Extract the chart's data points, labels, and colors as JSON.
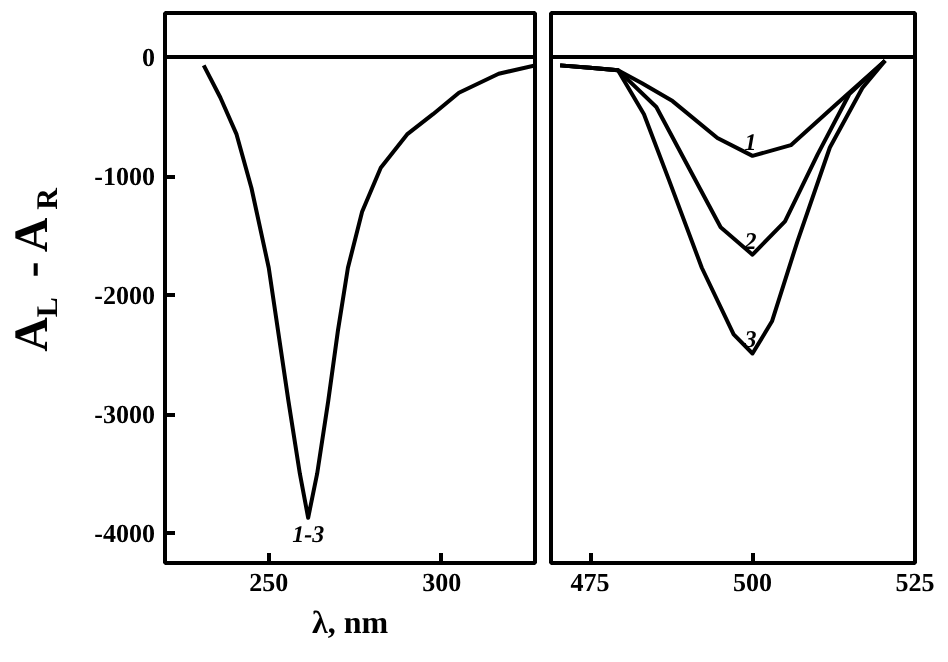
{
  "chart_data": [
    {
      "type": "line",
      "ylabel": "A$_{L}$ - A$_{R}$",
      "xlabel": "λ, nm",
      "xlim": [
        220,
        327
      ],
      "xticks": [
        250,
        300
      ],
      "ylim": [
        -4250,
        370
      ],
      "yticks": [
        0,
        -1000,
        -2000,
        -3000,
        -4000
      ],
      "grid": false,
      "ref_lines": [
        {
          "axis": "y",
          "value": 0,
          "color": "#000000"
        }
      ],
      "series": [
        {
          "name": "1-3",
          "color": "#000000",
          "x": [
            231.2,
            236,
            240.7,
            245,
            250,
            255.7,
            259,
            261.4,
            264,
            267.2,
            270,
            272.9,
            277,
            282.4,
            290,
            297.5,
            305,
            316.5,
            327
          ],
          "values": [
            -70,
            -340,
            -650,
            -1100,
            -1770,
            -2890,
            -3500,
            -3870,
            -3500,
            -2890,
            -2300,
            -1770,
            -1300,
            -930,
            -650,
            -480,
            -300,
            -140,
            -70
          ]
        }
      ]
    },
    {
      "type": "line",
      "xlim": [
        469,
        525
      ],
      "xticks": [
        475,
        500,
        525
      ],
      "ylim": [
        -4250,
        370
      ],
      "yticks": [
        0,
        -1000,
        -2000,
        -3000,
        -4000
      ],
      "tick_labels": "x",
      "grid": false,
      "ref_lines": [
        {
          "axis": "y",
          "value": 0,
          "color": "#000000"
        }
      ],
      "series": [
        {
          "name": "1",
          "color": "#000000",
          "x": [
            470.4,
            475,
            479.3,
            483,
            487.7,
            494.6,
            500,
            505.9,
            512.8,
            520.4
          ],
          "values": [
            -70,
            -90,
            -110,
            -220,
            -370,
            -680,
            -830,
            -740,
            -400,
            -30
          ]
        },
        {
          "name": "2",
          "color": "#000000",
          "x": [
            470.4,
            475,
            479.3,
            485.2,
            490.2,
            495.1,
            500,
            505,
            510,
            514.9,
            520.4
          ],
          "values": [
            -70,
            -90,
            -110,
            -420,
            -930,
            -1430,
            -1660,
            -1380,
            -820,
            -310,
            -30
          ]
        },
        {
          "name": "3",
          "color": "#000000",
          "x": [
            470.4,
            475,
            479.3,
            483.3,
            487.2,
            492.2,
            497.1,
            500,
            503,
            506.9,
            511.9,
            516.9,
            520.4
          ],
          "values": [
            -70,
            -90,
            -110,
            -480,
            -1040,
            -1770,
            -2330,
            -2490,
            -2220,
            -1550,
            -760,
            -260,
            -30
          ]
        }
      ]
    }
  ]
}
